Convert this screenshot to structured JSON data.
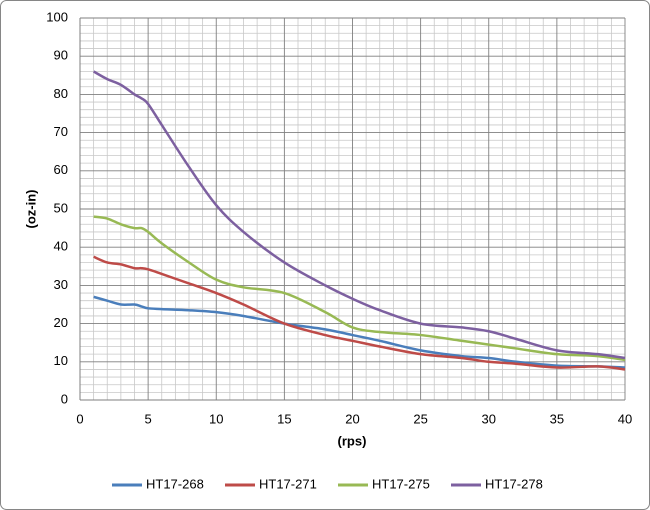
{
  "chart_data": {
    "type": "line",
    "x_label": "(rps)",
    "y_label": "(oz-in)",
    "x": [
      1,
      2,
      3,
      4,
      4.5,
      5,
      6,
      8,
      10,
      12,
      15,
      18,
      20,
      22,
      25,
      28,
      30,
      32,
      35,
      38,
      40
    ],
    "series": [
      {
        "name": "HT17-268",
        "color": "#4a7ebb",
        "values": [
          27,
          26,
          25,
          25,
          24.5,
          24,
          23.8,
          23.5,
          23,
          22,
          20,
          18.5,
          17,
          15.5,
          13,
          11.5,
          11,
          10,
          9,
          8.8,
          8.5
        ]
      },
      {
        "name": "HT17-271",
        "color": "#be4b48",
        "values": [
          37.5,
          36,
          35.5,
          34.5,
          34.5,
          34.2,
          33,
          30.5,
          28,
          25,
          20,
          17,
          15.5,
          14,
          12,
          11,
          10,
          9.5,
          8.5,
          8.8,
          8
        ]
      },
      {
        "name": "HT17-275",
        "color": "#98b954",
        "values": [
          48,
          47.5,
          46,
          45,
          45,
          44,
          41,
          36,
          31.5,
          29.5,
          28,
          23,
          19,
          17.8,
          17,
          15.5,
          14.5,
          13.5,
          12,
          11.5,
          10.5
        ]
      },
      {
        "name": "HT17-278",
        "color": "#7d60a0",
        "values": [
          86,
          84,
          82.5,
          80,
          79,
          77.5,
          72,
          61,
          51,
          44,
          36,
          30,
          26.5,
          23.5,
          20,
          19,
          18,
          16,
          13,
          12,
          11
        ]
      }
    ],
    "xlim": [
      0,
      40
    ],
    "xticks": [
      0,
      5,
      10,
      15,
      20,
      25,
      30,
      35,
      40
    ],
    "ylim": [
      0,
      100
    ],
    "yticks": [
      0,
      10,
      20,
      30,
      40,
      50,
      60,
      70,
      80,
      90,
      100
    ],
    "grid": true,
    "legend": "bottom"
  }
}
